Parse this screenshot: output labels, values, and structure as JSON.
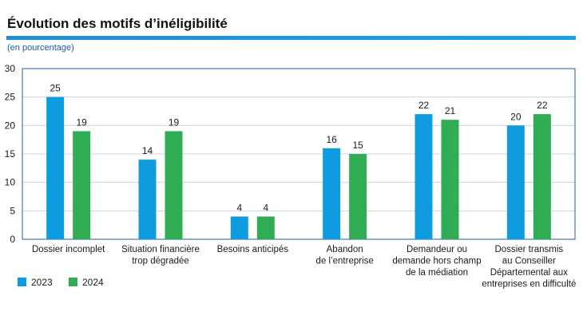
{
  "title": "Évolution des motifs d’inéligibilité",
  "subtitle": "(en pourcentage)",
  "colors": {
    "title_rule": "#1a9ee6",
    "frame": "#1b5fa8",
    "grid": "#c8d4e6"
  },
  "chart_data": {
    "type": "bar",
    "title": "Évolution des motifs d’inéligibilité",
    "unit": "(en pourcentage)",
    "categories": [
      [
        "Dossier incomplet"
      ],
      [
        "Situation financière",
        "trop dégradée"
      ],
      [
        "Besoins anticipés"
      ],
      [
        "Abandon",
        "de l’entreprise"
      ],
      [
        "Demandeur ou",
        "demande hors champ",
        "de la médiation"
      ],
      [
        "Dossier transmis",
        "au Conseiller",
        "Départemental aux",
        "entreprises en difficulté"
      ]
    ],
    "series": [
      {
        "name": "2023",
        "color": "#0f9be0",
        "values": [
          25,
          14,
          4,
          16,
          22,
          20
        ]
      },
      {
        "name": "2024",
        "color": "#30ac55",
        "values": [
          19,
          19,
          4,
          15,
          21,
          22
        ]
      }
    ],
    "ylim": [
      0,
      30
    ],
    "yticks": [
      0,
      5,
      10,
      15,
      20,
      25,
      30
    ],
    "grid": true,
    "legend": "bottom-left"
  }
}
